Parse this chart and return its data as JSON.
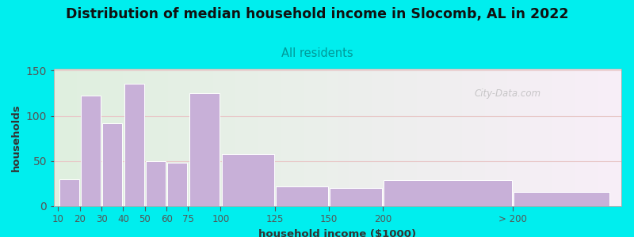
{
  "title": "Distribution of median household income in Slocomb, AL in 2022",
  "subtitle": "All residents",
  "xlabel": "household income ($1000)",
  "ylabel": "households",
  "background_color": "#00EEEE",
  "plot_bg_left": "#dff0df",
  "plot_bg_right": "#f8eef8",
  "bar_color": "#c8b0d8",
  "bar_edge_color": "#ffffff",
  "categories": [
    "10",
    "20",
    "30",
    "40",
    "50",
    "60",
    "75",
    "100",
    "125",
    "150",
    "200",
    "> 200"
  ],
  "values": [
    30,
    122,
    92,
    135,
    50,
    48,
    125,
    58,
    22,
    20,
    29,
    16
  ],
  "bar_lefts": [
    5,
    15,
    25,
    35,
    45,
    55,
    65,
    80,
    105,
    130,
    155,
    215
  ],
  "bar_widths": [
    10,
    10,
    10,
    10,
    10,
    10,
    15,
    25,
    25,
    25,
    60,
    45
  ],
  "xtick_positions": [
    5,
    15,
    25,
    35,
    45,
    55,
    65,
    80,
    105,
    130,
    155,
    215
  ],
  "xlim": [
    3,
    265
  ],
  "ylim": [
    0,
    152
  ],
  "yticks": [
    0,
    50,
    100,
    150
  ],
  "title_fontsize": 12.5,
  "subtitle_fontsize": 10.5,
  "axis_label_fontsize": 9.5,
  "tick_fontsize": 8.5,
  "watermark_text": "City-Data.com"
}
